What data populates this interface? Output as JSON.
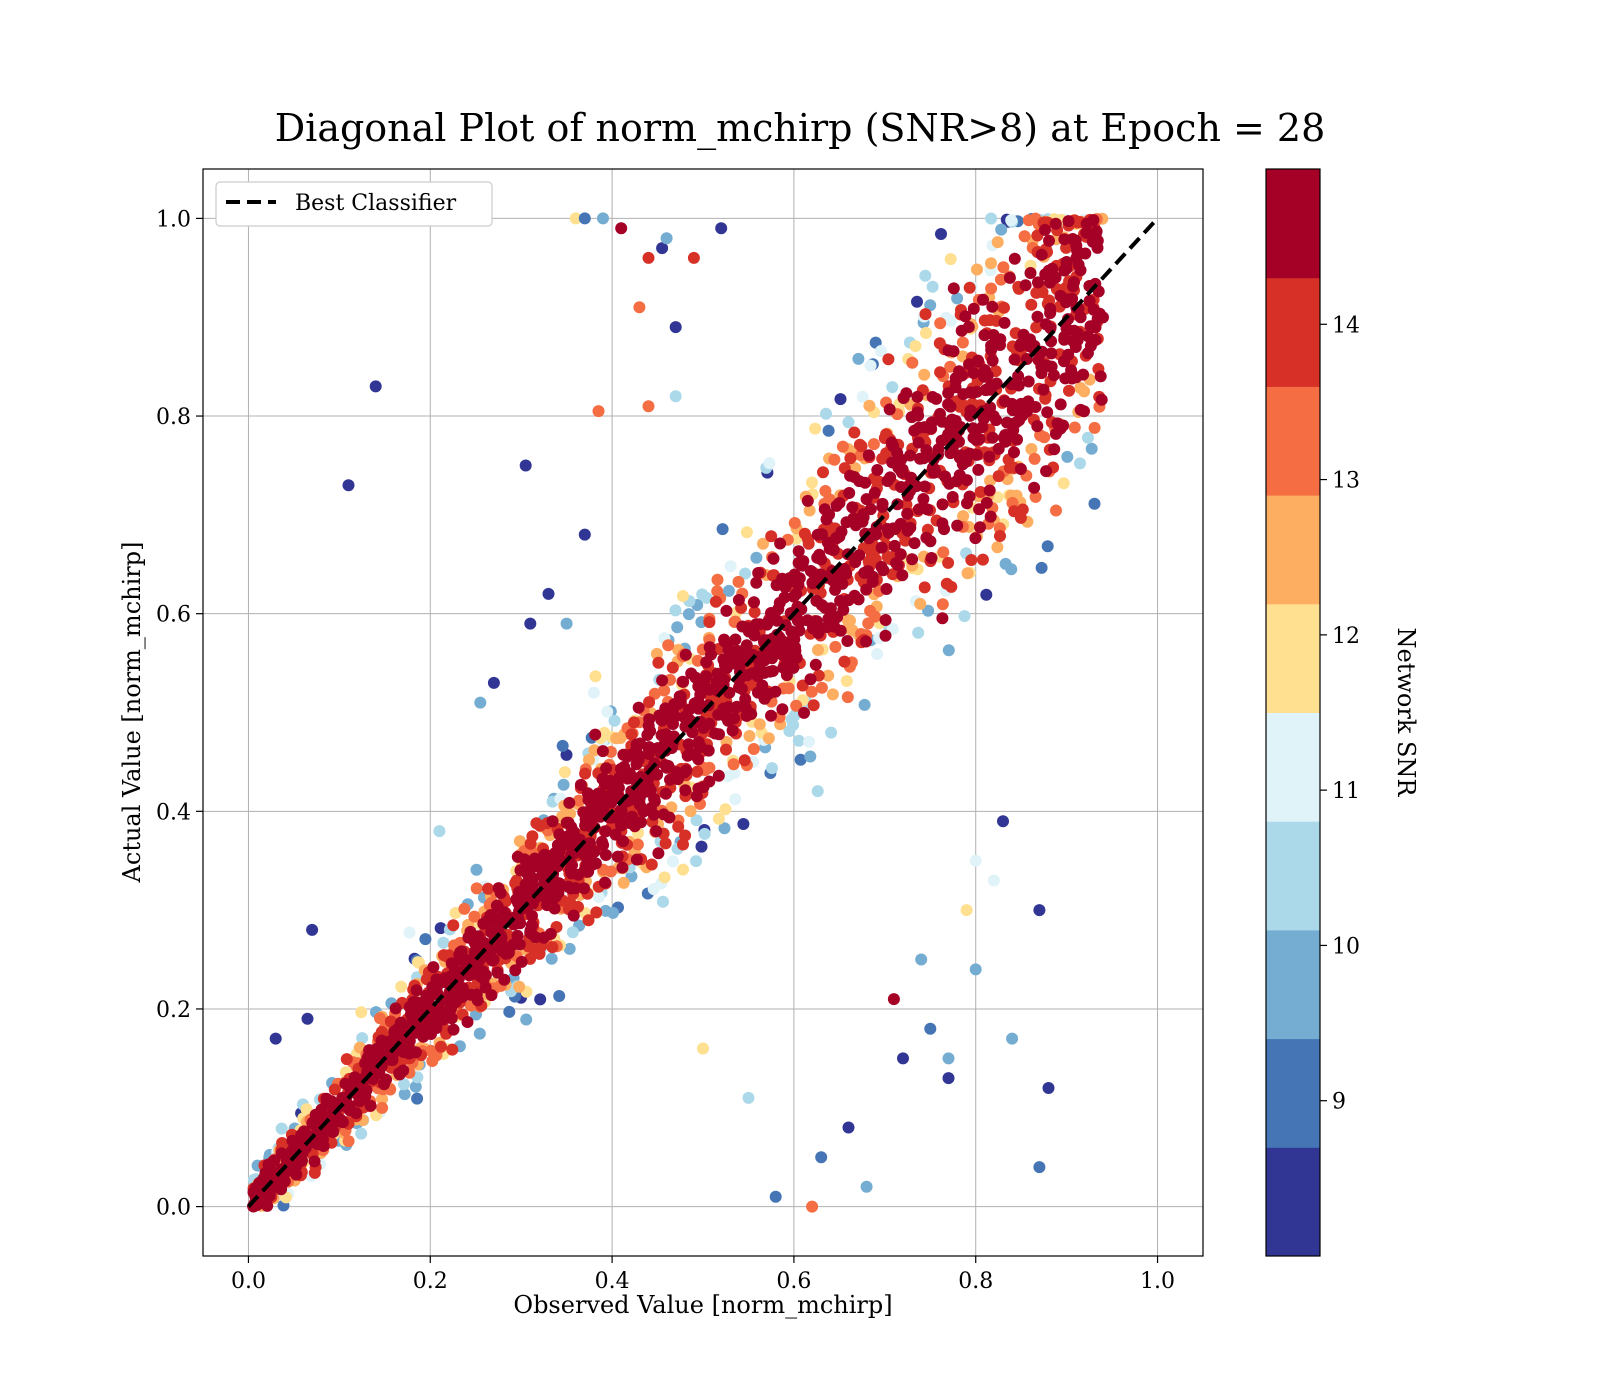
{
  "chart_data": {
    "type": "scatter",
    "title": "Diagonal Plot of norm_mchirp (SNR>8) at Epoch = 28",
    "xlabel": "Observed Value [norm_mchirp]",
    "ylabel": "Actual Value [norm_mchirp]",
    "xlim": [
      -0.05,
      1.05
    ],
    "ylim": [
      -0.05,
      1.05
    ],
    "xticks": [
      0.0,
      0.2,
      0.4,
      0.6,
      0.8,
      1.0
    ],
    "yticks": [
      0.0,
      0.2,
      0.4,
      0.6,
      0.8,
      1.0
    ],
    "xtick_labels": [
      "0.0",
      "0.2",
      "0.4",
      "0.6",
      "0.8",
      "1.0"
    ],
    "ytick_labels": [
      "0.0",
      "0.2",
      "0.4",
      "0.6",
      "0.8",
      "1.0"
    ],
    "grid": true,
    "legend": {
      "position": "top-left",
      "entries": [
        "Best Classifier"
      ]
    },
    "reference_line": {
      "name": "Best Classifier",
      "style": "dashed",
      "color": "#000000",
      "points": [
        [
          0.0,
          0.0
        ],
        [
          1.0,
          1.0
        ]
      ]
    },
    "colorbar": {
      "label": "Network SNR",
      "range": [
        8,
        15
      ],
      "ticks": [
        9,
        10,
        11,
        12,
        13,
        14
      ],
      "tick_labels": [
        "9",
        "10",
        "11",
        "12",
        "13",
        "14"
      ],
      "colors": [
        "#313695",
        "#4575b4",
        "#74add1",
        "#abd9e9",
        "#e0f3f8",
        "#fee090",
        "#fdae61",
        "#f46d43",
        "#d73027",
        "#a50026"
      ]
    },
    "points": [
      [
        0.11,
        0.73,
        8.2
      ],
      [
        0.14,
        0.83,
        8.3
      ],
      [
        0.305,
        0.75,
        8.4
      ],
      [
        0.87,
        0.3,
        8.5
      ],
      [
        0.87,
        0.04,
        9.2
      ],
      [
        0.88,
        0.12,
        8.6
      ],
      [
        0.84,
        0.17,
        9.4
      ],
      [
        0.8,
        0.24,
        9.6
      ],
      [
        0.71,
        0.21,
        14.6
      ],
      [
        0.62,
        0.0,
        13.2
      ],
      [
        0.385,
        0.805,
        13.1
      ],
      [
        0.36,
        1.0,
        12.1
      ],
      [
        0.37,
        1.0,
        9.3
      ],
      [
        0.39,
        1.0,
        9.6
      ],
      [
        0.41,
        0.99,
        14.7
      ],
      [
        0.44,
        0.96,
        13.7
      ],
      [
        0.43,
        0.91,
        13.1
      ],
      [
        0.44,
        0.81,
        13.3
      ],
      [
        0.47,
        0.82,
        10.6
      ],
      [
        0.455,
        0.97,
        8.3
      ],
      [
        0.47,
        0.89,
        8.5
      ],
      [
        0.52,
        0.99,
        8.4
      ],
      [
        0.27,
        0.53,
        8.4
      ],
      [
        0.255,
        0.51,
        9.8
      ],
      [
        0.21,
        0.38,
        10.4
      ],
      [
        0.07,
        0.28,
        8.4
      ],
      [
        0.065,
        0.19,
        8.6
      ],
      [
        0.03,
        0.17,
        8.5
      ],
      [
        0.46,
        0.98,
        9.4
      ],
      [
        0.49,
        0.96,
        13.8
      ],
      [
        0.33,
        0.62,
        8.3
      ],
      [
        0.31,
        0.59,
        8.4
      ],
      [
        0.35,
        0.59,
        9.9
      ],
      [
        0.37,
        0.68,
        8.4
      ],
      [
        0.38,
        0.52,
        11.2
      ],
      [
        0.77,
        0.15,
        9.8
      ],
      [
        0.75,
        0.18,
        8.8
      ],
      [
        0.72,
        0.15,
        8.4
      ],
      [
        0.74,
        0.25,
        10.1
      ],
      [
        0.79,
        0.3,
        11.6
      ],
      [
        0.8,
        0.35,
        11.3
      ],
      [
        0.82,
        0.33,
        11.1
      ],
      [
        0.77,
        0.13,
        8.7
      ],
      [
        0.83,
        0.39,
        8.5
      ],
      [
        0.68,
        0.02,
        9.9
      ],
      [
        0.63,
        0.05,
        9.2
      ],
      [
        0.58,
        0.01,
        9.1
      ],
      [
        0.66,
        0.08,
        8.7
      ],
      [
        0.55,
        0.11,
        10.5
      ],
      [
        0.5,
        0.16,
        11.8
      ]
    ]
  }
}
